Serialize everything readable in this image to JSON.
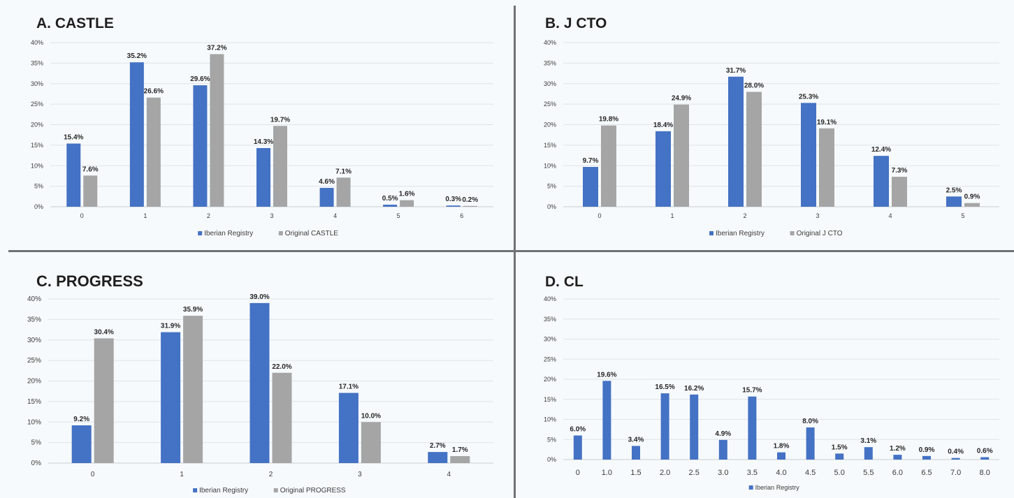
{
  "colors": {
    "iberian": "#4472c4",
    "original": "#a5a5a5",
    "grid": "#dfe3e8",
    "axis": "#c8cdd2"
  },
  "chart_data": [
    {
      "id": "A",
      "type": "bar",
      "title": "A. CASTLE",
      "categories": [
        "0",
        "1",
        "2",
        "3",
        "4",
        "5",
        "6"
      ],
      "series": [
        {
          "name": "Iberian Registry",
          "values": [
            15.4,
            35.2,
            29.6,
            14.3,
            4.6,
            0.5,
            0.3
          ],
          "labels": [
            "15.4%",
            "35.2%",
            "29.6%",
            "14.3%",
            "4.6%",
            "0.5%",
            "0.3%"
          ]
        },
        {
          "name": "Original CASTLE",
          "values": [
            7.6,
            26.6,
            37.2,
            19.7,
            7.1,
            1.6,
            0.2
          ],
          "labels": [
            "7.6%",
            "26.6%",
            "37.2%",
            "19.7%",
            "7.1%",
            "1.6%",
            "0.2%"
          ]
        }
      ],
      "yticks": [
        "0%",
        "5%",
        "10%",
        "15%",
        "20%",
        "25%",
        "30%",
        "35%",
        "40%"
      ],
      "ylim": [
        0,
        40
      ],
      "grid": true,
      "legend": "bottom"
    },
    {
      "id": "B",
      "type": "bar",
      "title": "B. J CTO",
      "categories": [
        "0",
        "1",
        "2",
        "3",
        "4",
        "5"
      ],
      "series": [
        {
          "name": "Iberian Registry",
          "values": [
            9.7,
            18.4,
            31.7,
            25.3,
            12.4,
            2.5
          ],
          "labels": [
            "9.7%",
            "18.4%",
            "31.7%",
            "25.3%",
            "12.4%",
            "2.5%"
          ]
        },
        {
          "name": "Original J CTO",
          "values": [
            19.8,
            24.9,
            28.0,
            19.1,
            7.3,
            0.9
          ],
          "labels": [
            "19.8%",
            "24.9%",
            "28.0%",
            "19.1%",
            "7.3%",
            "0.9%"
          ]
        }
      ],
      "yticks": [
        "0%",
        "5%",
        "10%",
        "15%",
        "20%",
        "25%",
        "30%",
        "35%",
        "40%"
      ],
      "ylim": [
        0,
        40
      ],
      "grid": true,
      "legend": "bottom"
    },
    {
      "id": "C",
      "type": "bar",
      "title": "C. PROGRESS",
      "categories": [
        "0",
        "1",
        "2",
        "3",
        "4"
      ],
      "series": [
        {
          "name": "Iberian Registry",
          "values": [
            9.2,
            31.9,
            39.0,
            17.1,
            2.7
          ],
          "labels": [
            "9.2%",
            "31.9%",
            "39.0%",
            "17.1%",
            "2.7%"
          ]
        },
        {
          "name": "Original PROGRESS",
          "values": [
            30.4,
            35.9,
            22.0,
            10.0,
            1.7
          ],
          "labels": [
            "30.4%",
            "35.9%",
            "22.0%",
            "10.0%",
            "1.7%"
          ]
        }
      ],
      "yticks": [
        "0%",
        "5%",
        "10%",
        "15%",
        "20%",
        "25%",
        "30%",
        "35%",
        "40%"
      ],
      "ylim": [
        0,
        40
      ],
      "grid": true,
      "legend": "bottom"
    },
    {
      "id": "D",
      "type": "bar",
      "title": "D. CL",
      "categories": [
        "0",
        "1.0",
        "1.5",
        "2.0",
        "2.5",
        "3.0",
        "3.5",
        "4.0",
        "4.5",
        "5.0",
        "5.5",
        "6.0",
        "6.5",
        "7.0",
        "8.0"
      ],
      "series": [
        {
          "name": "Iberian Registry",
          "values": [
            6.0,
            19.6,
            3.4,
            16.5,
            16.2,
            4.9,
            15.7,
            1.8,
            8.0,
            1.5,
            3.1,
            1.2,
            0.9,
            0.4,
            0.6
          ],
          "labels": [
            "6.0%",
            "19.6%",
            "3.4%",
            "16.5%",
            "16.2%",
            "4.9%",
            "15.7%",
            "1.8%",
            "8.0%",
            "1.5%",
            "3.1%",
            "1.2%",
            "0.9%",
            "0.4%",
            "0.6%"
          ]
        }
      ],
      "yticks": [
        "0%",
        "5%",
        "10%",
        "15%",
        "20%",
        "25%",
        "30%",
        "35%",
        "40%"
      ],
      "ylim": [
        0,
        40
      ],
      "grid": true,
      "legend": "bottom"
    }
  ]
}
